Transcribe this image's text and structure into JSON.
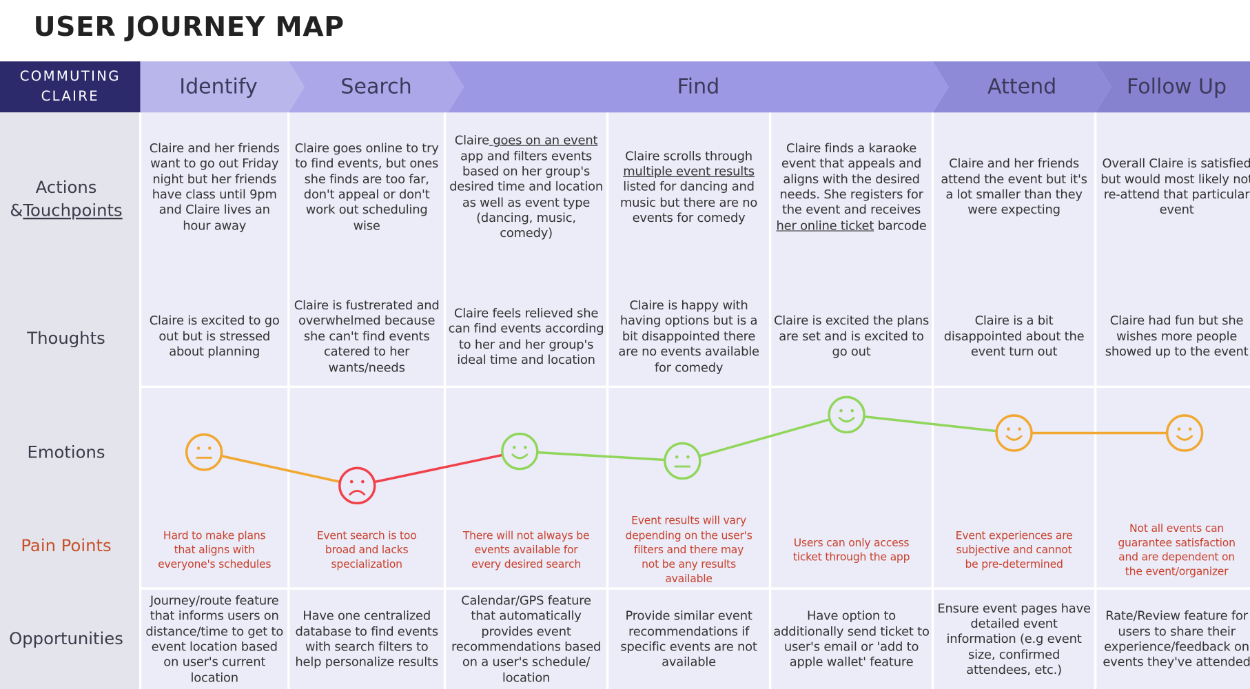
{
  "title": "USER JOURNEY MAP",
  "persona": "COMMUTING CLAIRE",
  "stages": [
    "Identify",
    "Search",
    "Find",
    "Attend",
    "Follow Up"
  ],
  "row_labels": {
    "actions": [
      "Actions &",
      {
        "underlined": "Touchpoints"
      }
    ],
    "thoughts": "Thoughts",
    "emotions": "Emotions",
    "pain_points": "Pain Points",
    "opportunities": "Opportunities"
  },
  "columns": [
    {
      "actions": "Claire and her friends want to go out Friday night but her friends have class until 9pm and Claire lives an hour away",
      "thoughts": "Claire is excited to go out but is stressed about planning",
      "pain_points": "Hard to make plans that aligns with everyone's schedules",
      "opportunities": "Journey/route feature that informs users on distance/time to get to event location based on user's current location"
    },
    {
      "actions": "Claire goes online to try to find events, but ones she finds are too far, don't appeal or don't work out scheduling wise",
      "thoughts": "Claire is fustrerated and overwhelmed because she can't find events catered to her wants/needs",
      "pain_points": "Event search is too broad and lacks specialization",
      "opportunities": "Have one centralized database to find events with search filters to help personalize results"
    },
    {
      "actions": [
        "Claire",
        {
          "underlined": " goes on an event"
        },
        " app and filters events based on her group's desired time and location as well as event type (dancing, music, comedy)"
      ],
      "thoughts": "Claire feels relieved she can find events according to her and her group's ideal time and location",
      "pain_points": "There will not always be events available for every desired search",
      "opportunities": "Calendar/GPS feature that automatically provides event recommendations based on a user's schedule/ location"
    },
    {
      "actions": [
        "Claire scrolls through ",
        {
          "underlined": "multiple event results"
        },
        " listed for dancing and music but there are no events for comedy"
      ],
      "thoughts": "Claire is happy with having options but is a bit disappointed there are no events available for comedy",
      "pain_points": "Event results will vary depending on the user's filters and there may not be any results available",
      "opportunities": "Provide similar event recommendations if specific events are not available"
    },
    {
      "actions": [
        "Claire finds a karaoke event that appeals and aligns with the desired needs. She registers for the event and receives ",
        {
          "underlined": "her online ticket"
        },
        " barcode"
      ],
      "thoughts": "Claire is excited the plans are set and is excited to go out",
      "pain_points": "Users can only access ticket through the app",
      "opportunities": "Have option to additionally send ticket to user's email or 'add to apple wallet' feature"
    },
    {
      "actions": "Claire and her friends attend the event but it's a lot smaller than they were expecting",
      "thoughts": "Claire is a bit disappointed about the event turn out",
      "pain_points": "Event experiences are subjective and cannot be pre-determined",
      "opportunities": "Ensure event pages have detailed event information (e.g event size, confirmed attendees, etc.)"
    },
    {
      "actions": "Overall Claire is satisfied but would most likely not re-attend that particular event",
      "thoughts": "Claire had fun but she wishes more people showed up to the event",
      "pain_points": "Not all events can guarantee satisfaction and are dependent on the event/organizer",
      "opportunities": "Rate/Review feature for users to share their experience/feedback on events they've attended"
    }
  ]
}
